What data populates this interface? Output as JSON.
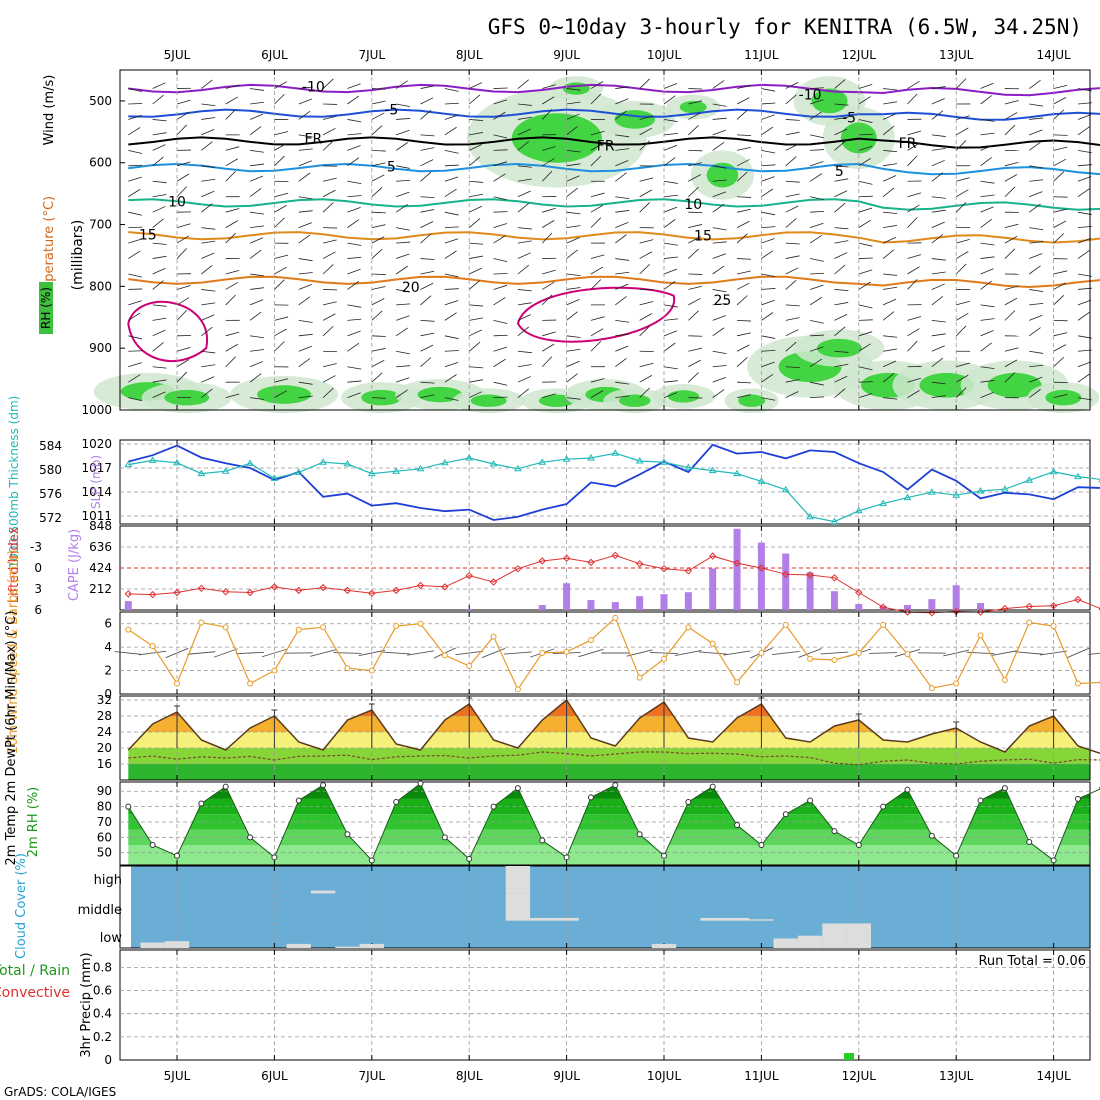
{
  "title": "GFS 0~10day 3-hourly for KENITRA (6.5W, 34.25N)",
  "credit": "GrADS: COLA/IGES",
  "dates": [
    "5JUL",
    "6JUL",
    "7JUL",
    "8JUL",
    "9JUL",
    "10JUL",
    "11JUL",
    "12JUL",
    "13JUL",
    "14JUL"
  ],
  "colors": {
    "rh_fill": "#3fbf3f",
    "temp_line": "#ff7f00",
    "isotherm_hot": "#cc0077",
    "slp": "#1c3fd6",
    "thickness": "#20b8b8",
    "cape": "#b27fe8",
    "lifted_index": "#e03030",
    "wind": "#e89b2a",
    "tmax_fill": "#f08020",
    "rh2m_fill": "#1fbf1f",
    "cloud_bg": "#6aaed6",
    "cloud_bar": "#dddddd",
    "precip": "#22cc22"
  },
  "chart_data": [
    {
      "type": "heatmap",
      "name": "upper-air",
      "ylabel_parts": [
        "RH (%)",
        "Temperature (°C)",
        "Wind (m/s)",
        "(millibars)"
      ],
      "y_ticks": [
        "500",
        "600",
        "700",
        "800",
        "900",
        "1000"
      ],
      "ylim": [
        1000,
        450
      ],
      "isotherm_labels": [
        {
          "text": "-10",
          "t": 1.9,
          "p": 477
        },
        {
          "text": "-10",
          "t": 7.0,
          "p": 490
        },
        {
          "text": "-5",
          "t": 2.7,
          "p": 514
        },
        {
          "text": "-5",
          "t": 7.4,
          "p": 527
        },
        {
          "text": "FR",
          "t": 1.9,
          "p": 561
        },
        {
          "text": "FR",
          "t": 4.9,
          "p": 572
        },
        {
          "text": "FR",
          "t": 8.0,
          "p": 568
        },
        {
          "text": "5",
          "t": 2.7,
          "p": 606
        },
        {
          "text": "5",
          "t": 7.3,
          "p": 613
        },
        {
          "text": "10",
          "t": 0.5,
          "p": 663
        },
        {
          "text": "10",
          "t": 5.8,
          "p": 667
        },
        {
          "text": "15",
          "t": 0.2,
          "p": 716
        },
        {
          "text": "15",
          "t": 5.9,
          "p": 718
        },
        {
          "text": "20",
          "t": 2.9,
          "p": 801
        },
        {
          "text": "25",
          "t": 6.1,
          "p": 822
        }
      ]
    },
    {
      "type": "line",
      "name": "slp-thickness",
      "ylabel_left": "1000-500mb Thickness (dm)",
      "ylabel_right": "SLP (mb)",
      "thickness_ticks": [
        "584",
        "580",
        "576",
        "572"
      ],
      "thickness_lim": [
        571,
        585
      ],
      "slp_ticks": [
        "1020",
        "1017",
        "1014",
        "1011"
      ],
      "slp_lim": [
        1010,
        1020.5
      ],
      "x": [
        0,
        0.25,
        0.5,
        0.75,
        1,
        1.25,
        1.5,
        1.75,
        2,
        2.25,
        2.5,
        2.75,
        3,
        3.25,
        3.5,
        3.75,
        4,
        4.25,
        4.5,
        4.75,
        5,
        5.25,
        5.5,
        5.75,
        6,
        6.25,
        6.5,
        6.75,
        7,
        7.25,
        7.5,
        7.75,
        8,
        8.25,
        8.5,
        8.75,
        9,
        9.25,
        9.5,
        9.75,
        10
      ],
      "series": [
        {
          "name": "SLP",
          "values": [
            1017.8,
            1018.6,
            1019.8,
            1018.3,
            1017.6,
            1017.0,
            1015.5,
            1016.5,
            1013.4,
            1013.8,
            1012.3,
            1012.6,
            1012.0,
            1011.6,
            1011.8,
            1010.5,
            1010.9,
            1011.8,
            1012.5,
            1015.2,
            1014.7,
            1016.2,
            1017.8,
            1016.5,
            1019.9,
            1018.8,
            1019.0,
            1018.2,
            1019.2,
            1019.0,
            1017.6,
            1016.5,
            1014.3,
            1016.8,
            1015.4,
            1013.2,
            1013.9,
            1013.7,
            1013.1,
            1014.6,
            1014.5
          ]
        },
        {
          "name": "Thickness",
          "values": [
            580.9,
            581.6,
            581.2,
            579.4,
            579.8,
            581.1,
            578.6,
            579.6,
            581.3,
            581.0,
            579.4,
            579.8,
            580.2,
            581.2,
            582.0,
            581.0,
            580.2,
            581.3,
            581.8,
            582.0,
            582.8,
            581.5,
            581.3,
            580.4,
            579.9,
            579.4,
            578.1,
            576.7,
            572.2,
            571.4,
            573.2,
            574.4,
            575.4,
            576.3,
            575.8,
            576.5,
            576.8,
            578.3,
            579.7,
            578.9,
            578.4
          ]
        }
      ]
    },
    {
      "type": "bar",
      "name": "cape-lifted-index",
      "ylabel_left": "Lifted Index",
      "ylabel_right": "CAPE (J/kg)",
      "li_ticks": [
        "-3",
        "0",
        "3",
        "6"
      ],
      "li_lim": [
        6,
        -6
      ],
      "cape_ticks": [
        "848",
        "636",
        "424",
        "212"
      ],
      "cape_lim": [
        0,
        848
      ],
      "x": [
        0,
        0.25,
        0.5,
        0.75,
        1,
        1.25,
        1.5,
        1.75,
        2,
        2.25,
        2.5,
        2.75,
        3,
        3.25,
        3.5,
        3.75,
        4,
        4.25,
        4.5,
        4.75,
        5,
        5.25,
        5.5,
        5.75,
        6,
        6.25,
        6.5,
        6.75,
        7,
        7.25,
        7.5,
        7.75,
        8,
        8.25,
        8.5,
        8.75,
        9,
        9.25,
        9.5,
        9.75,
        10
      ],
      "series": [
        {
          "name": "Lifted Index",
          "values": [
            3.7,
            3.8,
            3.5,
            2.9,
            3.4,
            3.5,
            2.7,
            3.2,
            2.8,
            3.2,
            3.6,
            3.2,
            2.5,
            2.7,
            1.1,
            2.0,
            0.1,
            -1.0,
            -1.4,
            -0.8,
            -1.8,
            -0.6,
            0.1,
            0.4,
            -1.7,
            -0.7,
            0.0,
            0.9,
            1.0,
            1.4,
            3.5,
            5.6,
            6.3,
            6.4,
            6.2,
            6.3,
            5.8,
            5.5,
            5.4,
            4.5,
            5.9
          ]
        },
        {
          "name": "CAPE",
          "values": [
            90,
            0,
            0,
            0,
            0,
            0,
            0,
            0,
            0,
            0,
            0,
            0,
            0,
            0,
            10,
            0,
            0,
            50,
            270,
            100,
            80,
            140,
            160,
            180,
            420,
            820,
            680,
            570,
            380,
            190,
            60,
            40,
            50,
            110,
            250,
            70,
            0,
            0,
            0,
            0,
            0
          ]
        }
      ]
    },
    {
      "type": "line",
      "name": "wind-10m",
      "ylabel": "10m Wind Speed & Barbs (m/s)",
      "y_ticks": [
        "6",
        "4",
        "2",
        "0"
      ],
      "ylim": [
        0,
        7
      ],
      "x": [
        0,
        0.25,
        0.5,
        0.75,
        1,
        1.25,
        1.5,
        1.75,
        2,
        2.25,
        2.5,
        2.75,
        3,
        3.25,
        3.5,
        3.75,
        4,
        4.25,
        4.5,
        4.75,
        5,
        5.25,
        5.5,
        5.75,
        6,
        6.25,
        6.5,
        6.75,
        7,
        7.25,
        7.5,
        7.75,
        8,
        8.25,
        8.5,
        8.75,
        9,
        9.25,
        9.5,
        9.75,
        10
      ],
      "series": [
        {
          "name": "Wind Speed",
          "values": [
            5.5,
            4.1,
            0.9,
            6.1,
            5.7,
            0.9,
            2.0,
            5.5,
            5.7,
            2.2,
            2.0,
            5.8,
            6.0,
            3.3,
            2.4,
            4.9,
            0.4,
            3.5,
            3.6,
            4.6,
            6.5,
            1.4,
            3.0,
            5.7,
            4.3,
            1.0,
            3.5,
            5.9,
            3.0,
            2.9,
            3.5,
            5.9,
            3.4,
            0.5,
            0.9,
            5.0,
            1.2,
            6.1,
            5.8,
            0.9,
            1.0
          ]
        }
      ]
    },
    {
      "type": "area",
      "name": "temp-2m",
      "ylabel": "2m Temp 2m DewPt (6hr Min/Max) (°C)",
      "y_ticks": [
        "32",
        "28",
        "24",
        "20",
        "16"
      ],
      "ylim": [
        12,
        33
      ],
      "x": [
        0,
        0.25,
        0.5,
        0.75,
        1,
        1.25,
        1.5,
        1.75,
        2,
        2.25,
        2.5,
        2.75,
        3,
        3.25,
        3.5,
        3.75,
        4,
        4.25,
        4.5,
        4.75,
        5,
        5.25,
        5.5,
        5.75,
        6,
        6.25,
        6.5,
        6.75,
        7,
        7.25,
        7.5,
        7.75,
        8,
        8.25,
        8.5,
        8.75,
        9,
        9.25,
        9.5,
        9.75,
        10
      ],
      "series": [
        {
          "name": "Temp",
          "values": [
            19.5,
            26.0,
            29.0,
            22.0,
            19.5,
            25.0,
            28.0,
            21.5,
            19.5,
            27.0,
            29.5,
            21.0,
            19.5,
            27.0,
            31.0,
            22.0,
            20.0,
            27.0,
            32.0,
            22.5,
            20.5,
            27.5,
            31.5,
            22.5,
            21.5,
            27.5,
            31.0,
            22.5,
            21.5,
            25.5,
            27.0,
            22.0,
            21.5,
            23.5,
            25.0,
            21.5,
            19.0,
            25.5,
            28.0,
            20.5,
            18.5
          ]
        },
        {
          "name": "DewPt",
          "values": [
            17.5,
            18.0,
            17.2,
            17.8,
            17.5,
            17.9,
            17.0,
            17.9,
            18.0,
            18.2,
            17.1,
            17.8,
            18.0,
            18.1,
            17.5,
            18.0,
            18.2,
            19.0,
            18.6,
            18.0,
            18.5,
            19.0,
            19.0,
            18.6,
            18.7,
            18.5,
            17.8,
            18.0,
            17.6,
            16.2,
            15.8,
            16.7,
            17.0,
            16.2,
            16.0,
            16.7,
            17.0,
            17.2,
            16.2,
            17.1,
            17.0
          ]
        }
      ]
    },
    {
      "type": "area",
      "name": "rh-2m",
      "ylabel": "2m RH (%)",
      "y_ticks": [
        "90",
        "80",
        "70",
        "60",
        "50"
      ],
      "ylim": [
        42,
        96
      ],
      "x": [
        0,
        0.25,
        0.5,
        0.75,
        1,
        1.25,
        1.5,
        1.75,
        2,
        2.25,
        2.5,
        2.75,
        3,
        3.25,
        3.5,
        3.75,
        4,
        4.25,
        4.5,
        4.75,
        5,
        5.25,
        5.5,
        5.75,
        6,
        6.25,
        6.5,
        6.75,
        7,
        7.25,
        7.5,
        7.75,
        8,
        8.25,
        8.5,
        8.75,
        9,
        9.25,
        9.5,
        9.75,
        10
      ],
      "series": [
        {
          "name": "RH",
          "values": [
            80,
            55,
            48,
            82,
            93,
            60,
            47,
            84,
            94,
            62,
            45,
            83,
            95,
            60,
            46,
            80,
            92,
            58,
            47,
            86,
            94,
            62,
            48,
            83,
            93,
            68,
            55,
            75,
            84,
            64,
            55,
            80,
            91,
            61,
            48,
            84,
            92,
            57,
            45,
            85,
            92
          ]
        }
      ]
    },
    {
      "type": "bar",
      "name": "cloud-cover",
      "ylabel": "Cloud Cover (%)",
      "levels": [
        "high",
        "middle",
        "low"
      ],
      "x": [
        0,
        0.25,
        0.5,
        0.75,
        1,
        1.25,
        1.5,
        1.75,
        2,
        2.25,
        2.5,
        2.75,
        3,
        3.25,
        3.5,
        3.75,
        4,
        4.25,
        4.5,
        4.75,
        5,
        5.25,
        5.5,
        5.75,
        6,
        6.25,
        6.5,
        6.75,
        7,
        7.25,
        7.5,
        7.75,
        8,
        8.25,
        8.5,
        8.75,
        9,
        9.25,
        9.5,
        9.75,
        10
      ],
      "series": [
        {
          "name": "high",
          "values": [
            0,
            0,
            0,
            0,
            0,
            0,
            0,
            0,
            10,
            0,
            0,
            0,
            0,
            0,
            0,
            0,
            100,
            0,
            0,
            0,
            0,
            0,
            0,
            0,
            0,
            0,
            0,
            0,
            0,
            0,
            0,
            0,
            0,
            0,
            0,
            0,
            0,
            0,
            0,
            0,
            0
          ]
        },
        {
          "name": "middle",
          "values": [
            0,
            0,
            0,
            0,
            0,
            0,
            0,
            0,
            0,
            0,
            0,
            0,
            0,
            0,
            0,
            0,
            100,
            10,
            10,
            0,
            0,
            0,
            0,
            0,
            10,
            10,
            5,
            0,
            0,
            0,
            0,
            0,
            0,
            0,
            0,
            0,
            0,
            0,
            0,
            0,
            0
          ]
        },
        {
          "name": "low",
          "values": [
            0,
            20,
            25,
            0,
            0,
            0,
            0,
            15,
            0,
            5,
            15,
            0,
            0,
            0,
            0,
            0,
            0,
            0,
            0,
            0,
            0,
            0,
            15,
            0,
            0,
            0,
            0,
            35,
            45,
            90,
            90,
            0,
            0,
            0,
            0,
            0,
            0,
            0,
            0,
            0,
            0
          ]
        }
      ]
    },
    {
      "type": "bar",
      "name": "precip",
      "ylabel": "3hr Precip (mm)",
      "legend_left_top": "Total / Rain",
      "legend_left_bottom": "Convective",
      "run_total": "Run Total = 0.06",
      "y_ticks": [
        "0.8",
        "0.6",
        "0.4",
        "0.2",
        "0"
      ],
      "ylim": [
        0,
        0.95
      ],
      "x": [
        7.4
      ],
      "values": [
        0.06
      ]
    }
  ]
}
